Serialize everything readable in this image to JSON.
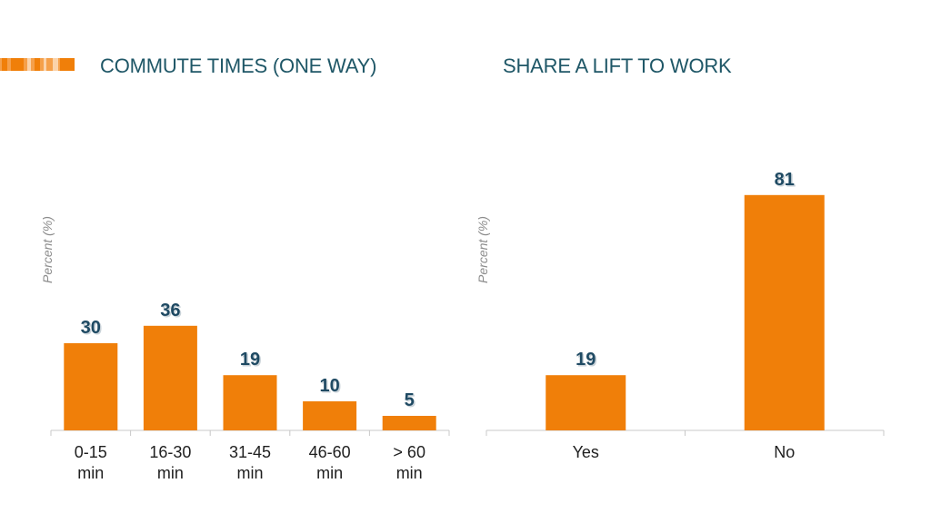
{
  "colors": {
    "bar": "#f07f09",
    "axis": "#c8c8c8",
    "title": "#1f5767",
    "value_label": "#1f4a63"
  },
  "chart_data": [
    {
      "type": "bar",
      "title": "COMMUTE TIMES (ONE WAY)",
      "ylabel": "Percent (%)",
      "categories": [
        [
          "0-15",
          "min"
        ],
        [
          "16-30",
          "min"
        ],
        [
          "31-45",
          "min"
        ],
        [
          "46-60",
          "min"
        ],
        [
          "> 60",
          "min"
        ]
      ],
      "values": [
        30,
        36,
        19,
        10,
        5
      ],
      "ylim": [
        0,
        85
      ],
      "grid": false
    },
    {
      "type": "bar",
      "title": "SHARE A LIFT TO WORK",
      "ylabel": "Percent (%)",
      "categories": [
        [
          "Yes"
        ],
        [
          "No"
        ]
      ],
      "values": [
        19,
        81
      ],
      "ylim": [
        0,
        85
      ],
      "grid": false
    }
  ]
}
